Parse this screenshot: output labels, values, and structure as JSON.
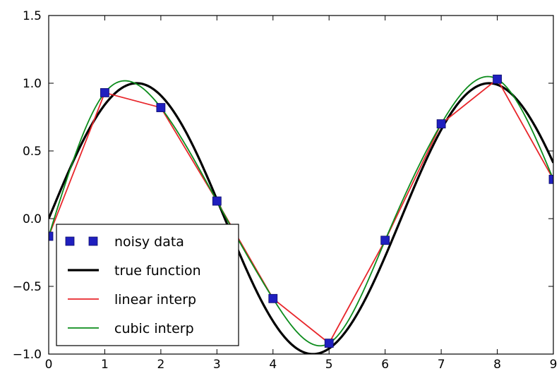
{
  "chart_data": {
    "type": "line",
    "title": "",
    "xlabel": "",
    "ylabel": "",
    "xlim": [
      0,
      9
    ],
    "ylim": [
      -1.0,
      1.5
    ],
    "xticks": [
      "0",
      "1",
      "2",
      "3",
      "4",
      "5",
      "6",
      "7",
      "8",
      "9"
    ],
    "yticks": [
      "1.5",
      "1.0",
      "0.5",
      "0.0",
      "−0.5",
      "−1.0"
    ],
    "grid": false,
    "legend_position": "lower-left",
    "series": [
      {
        "name": "noisy data",
        "kind": "markers",
        "color": "#1f1fbf",
        "x": [
          0,
          1,
          2,
          3,
          4,
          5,
          6,
          7,
          8,
          9
        ],
        "y": [
          -0.13,
          0.93,
          0.82,
          0.13,
          -0.59,
          -0.92,
          -0.16,
          0.7,
          1.03,
          0.29
        ]
      },
      {
        "name": "true function",
        "kind": "line",
        "color": "#000000",
        "function": "sin(x)"
      },
      {
        "name": "linear interp",
        "kind": "line",
        "color": "#e8262b",
        "x": [
          0,
          1,
          2,
          3,
          4,
          5,
          6,
          7,
          8,
          9
        ],
        "y": [
          -0.13,
          0.93,
          0.82,
          0.13,
          -0.59,
          -0.92,
          -0.16,
          0.7,
          1.03,
          0.29
        ]
      },
      {
        "name": "cubic interp",
        "kind": "line",
        "color": "#0c8c1c",
        "x": [
          0,
          1,
          2,
          3,
          4,
          5,
          6,
          7,
          8,
          9
        ],
        "y": [
          -0.13,
          0.93,
          0.82,
          0.13,
          -0.59,
          -0.92,
          -0.16,
          0.7,
          1.03,
          0.29
        ]
      }
    ]
  }
}
